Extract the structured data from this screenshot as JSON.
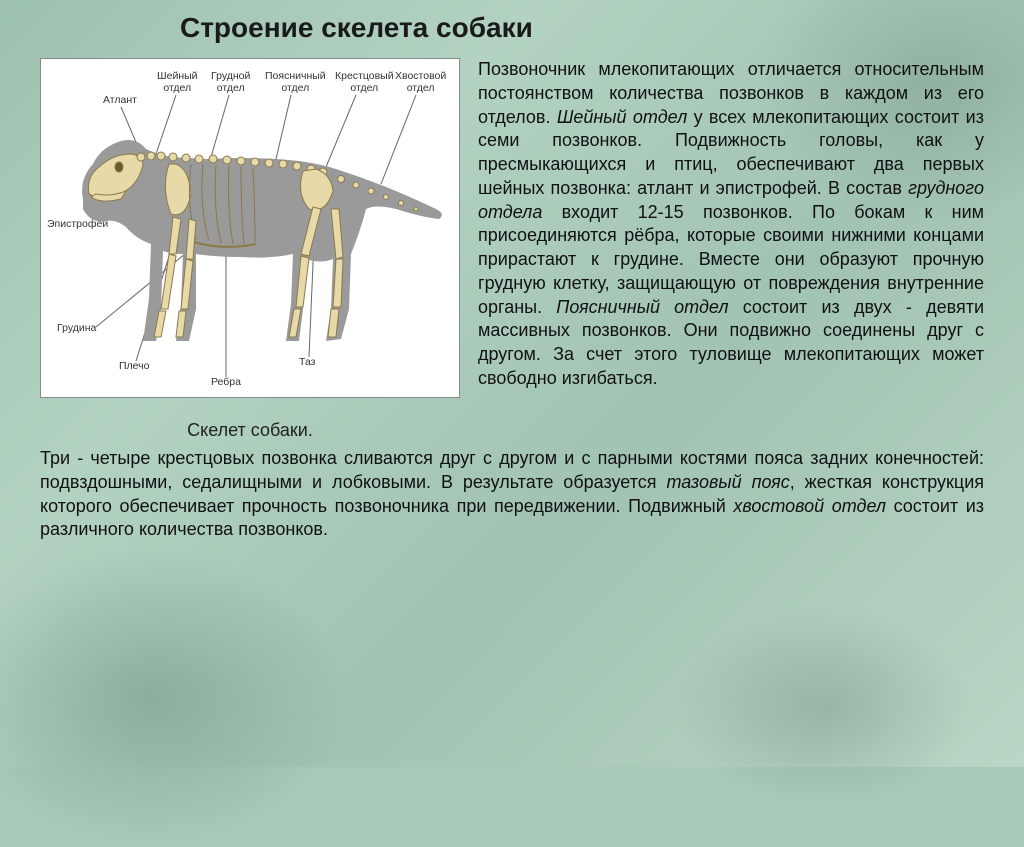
{
  "title": "Строение скелета собаки",
  "diagram": {
    "caption": "Скелет собаки.",
    "background_color": "#ffffff",
    "silhouette_color": "#9a9a9a",
    "bone_color": "#e8d9a8",
    "bone_stroke": "#8a7a4a",
    "label_fontsize": 10.5,
    "label_color": "#333333",
    "labels": {
      "atlant": "Атлант",
      "sheinyi": "Шейный\nотдел",
      "grudnoi": "Грудной\nотдел",
      "poyasnichnyi": "Поясничный\nотдел",
      "krestcovyi": "Крестцовый\nотдел",
      "hvostovoi": "Хвостовой\nотдел",
      "epistrofei": "Эпистрофей",
      "grudina": "Грудина",
      "plecho": "Плечо",
      "rebra": "Ребра",
      "taz": "Таз"
    }
  },
  "paragraphs": {
    "right": "Позвоночник млекопитающих отличается относительным постоянством количества позвонков в каждом из его отделов. <em>Шейный отдел</em> у всех млекопитающих состоит из семи позвонков. Подвижность головы, как у пресмыкающихся и птиц, обеспечивают два первых шейных позвонка: атлант и эпистрофей. В состав <em>грудного отдела</em> входит 12-15 позвонков. По бокам к ним присоединяются рёбра, которые своими нижними концами прирастают к грудине. Вместе они образуют прочную грудную клетку, защищающую от повреждения внутренние органы. <em>Поясничный отдел</em> состоит из двух - девяти массивных позвонков. Они подвижно соединены друг с другом. За счет этого туловище млекопитающих может свободно изгибаться.",
    "bottom": "Три - четыре крестцовых позвонка сливаются друг с другом и с парными костями пояса задних конечностей: подвздошными, седалищными и лобковыми. В результате образуется <em>тазовый пояс</em>, жесткая конструкция которого обеспечивает прочность позвоночника при передвижении. Подвижный <em>хвостовой отдел</em> состоит из различного количества позвонков."
  },
  "colors": {
    "page_bg": "#a8c9b8",
    "text": "#111111",
    "title": "#1a1a1a"
  },
  "typography": {
    "title_fontsize": 28,
    "body_fontsize": 18,
    "caption_fontsize": 18
  }
}
